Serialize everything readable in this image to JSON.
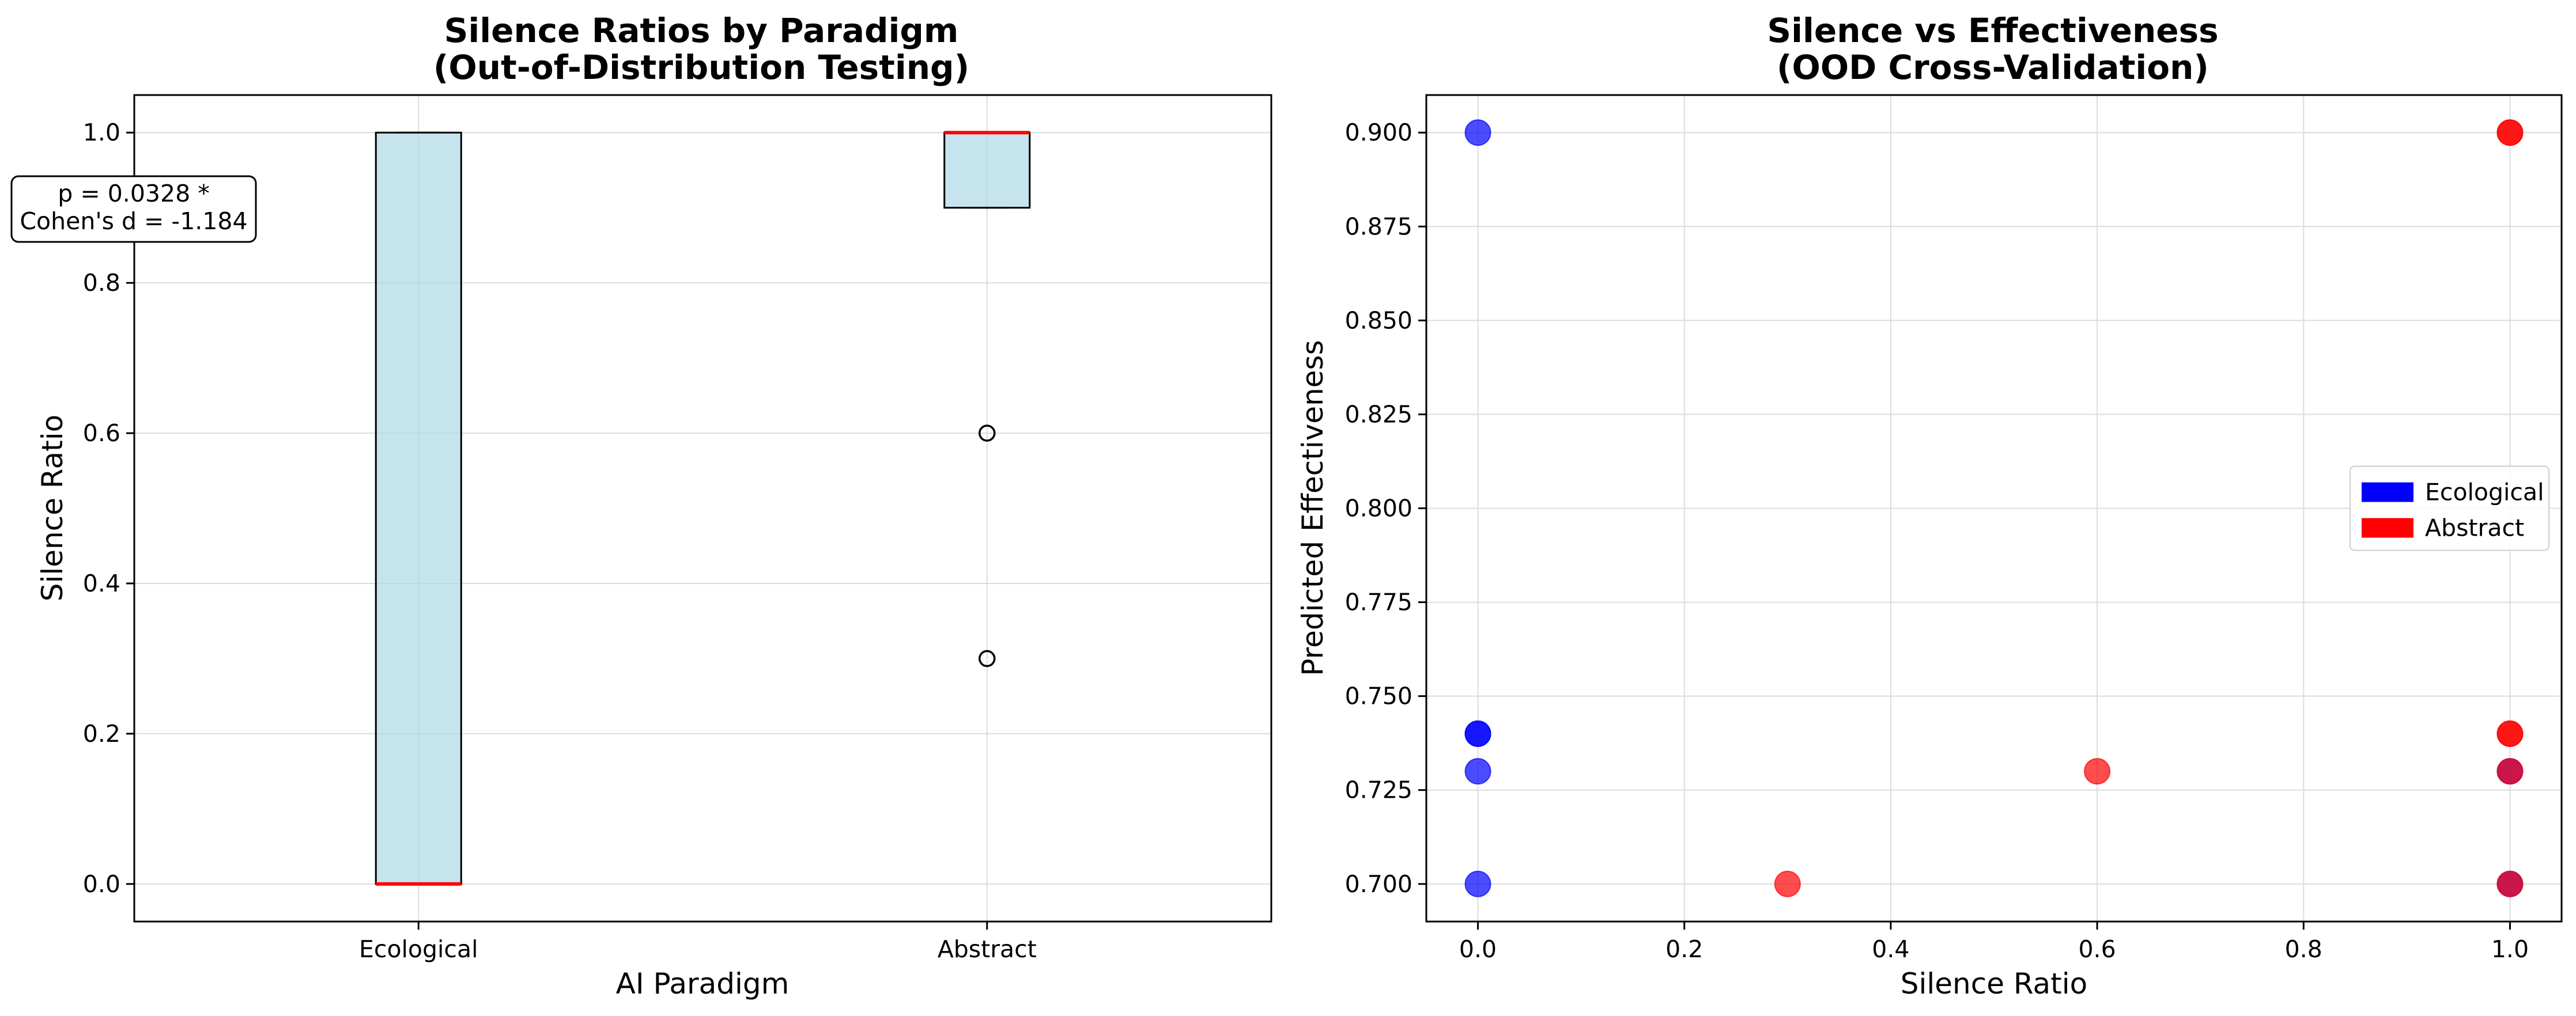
{
  "chart_data": [
    {
      "type": "box",
      "title_line1": "Silence Ratios by Paradigm",
      "title_line2": "(Out-of-Distribution Testing)",
      "xlabel": "AI Paradigm",
      "ylabel": "Silence Ratio",
      "ylim": [
        -0.05,
        1.05
      ],
      "yticks": [
        "0.0",
        "0.2",
        "0.4",
        "0.6",
        "0.8",
        "1.0"
      ],
      "categories": [
        "Ecological",
        "Abstract"
      ],
      "boxes": [
        {
          "category": "Ecological",
          "q1": 0.0,
          "median": 0.0,
          "q3": 1.0,
          "whisker_low": 0.0,
          "whisker_high": 1.0,
          "outliers": []
        },
        {
          "category": "Abstract",
          "q1": 0.9,
          "median": 1.0,
          "q3": 1.0,
          "whisker_low": 0.9,
          "whisker_high": 1.0,
          "outliers": [
            0.6,
            0.3
          ]
        }
      ],
      "box_color": "#add8e6",
      "median_color": "#ff0000",
      "grid": true,
      "annotation_line1": "p = 0.0328 *",
      "annotation_line2": "Cohen's d = -1.184"
    },
    {
      "type": "scatter",
      "title_line1": "Silence vs Effectiveness",
      "title_line2": "(OOD Cross-Validation)",
      "xlabel": "Silence Ratio",
      "ylabel": "Predicted Effectiveness",
      "xlim": [
        -0.05,
        1.05
      ],
      "ylim": [
        0.69,
        0.91
      ],
      "xticks": [
        "0.0",
        "0.2",
        "0.4",
        "0.6",
        "0.8",
        "1.0"
      ],
      "yticks": [
        "0.700",
        "0.725",
        "0.750",
        "0.775",
        "0.800",
        "0.825",
        "0.850",
        "0.875",
        "0.900"
      ],
      "grid": true,
      "legend_position": "center-right",
      "series": [
        {
          "name": "Ecological",
          "color": "#0000ff",
          "points": [
            [
              0.0,
              0.9
            ],
            [
              0.0,
              0.74
            ],
            [
              0.0,
              0.74
            ],
            [
              0.0,
              0.73
            ],
            [
              0.0,
              0.7
            ],
            [
              1.0,
              0.73
            ],
            [
              1.0,
              0.7
            ]
          ]
        },
        {
          "name": "Abstract",
          "color": "#ff0000",
          "points": [
            [
              1.0,
              0.9
            ],
            [
              1.0,
              0.9
            ],
            [
              1.0,
              0.74
            ],
            [
              1.0,
              0.74
            ],
            [
              1.0,
              0.73
            ],
            [
              1.0,
              0.7
            ],
            [
              0.6,
              0.73
            ],
            [
              0.3,
              0.7
            ]
          ]
        }
      ]
    }
  ]
}
